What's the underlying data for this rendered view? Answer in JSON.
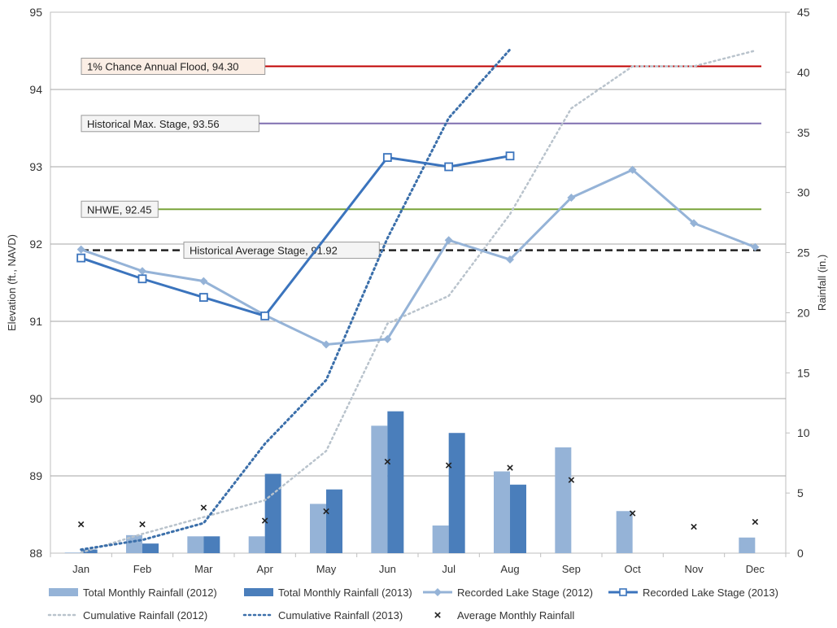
{
  "chart_data": {
    "type": "combo-bar-line",
    "categories": [
      "Jan",
      "Feb",
      "Mar",
      "Apr",
      "May",
      "Jun",
      "Jul",
      "Aug",
      "Sep",
      "Oct",
      "Nov",
      "Dec"
    ],
    "ylabel": "Elevation (ft., NAVD)",
    "y2label": "Rainfall (in.)",
    "ylim": [
      88,
      95
    ],
    "y2lim": [
      0,
      45
    ],
    "yticks": [
      88,
      89,
      90,
      91,
      92,
      93,
      94,
      95
    ],
    "y2ticks": [
      0,
      5,
      10,
      15,
      20,
      25,
      30,
      35,
      40,
      45
    ],
    "grid": "horizontal",
    "legend_position": "bottom",
    "colors": {
      "rain2012": "#95b3d7",
      "rain2013": "#4a7ebb",
      "stage2012": "#95b3d7",
      "stage2013": "#3b74bd",
      "cum2012": "#b9c3cc",
      "cum2013": "#3b6faa",
      "average": "#222222",
      "flood": "#c00000",
      "histmax": "#7f6fb0",
      "nhwe": "#7aa43a",
      "histavg": "#222222"
    },
    "series": [
      {
        "name": "Total Monthly Rainfall (2012)",
        "kind": "bar",
        "axis": "y2",
        "values": [
          0.05,
          1.5,
          1.4,
          1.4,
          4.1,
          10.6,
          2.3,
          6.8,
          8.8,
          3.5,
          0,
          1.3
        ]
      },
      {
        "name": "Total Monthly Rainfall (2013)",
        "kind": "bar",
        "axis": "y2",
        "values": [
          0.3,
          0.8,
          1.4,
          6.6,
          5.3,
          11.8,
          10.0,
          5.7,
          null,
          null,
          null,
          null
        ]
      },
      {
        "name": "Recorded Lake Stage (2012)",
        "kind": "line",
        "axis": "y",
        "values": [
          91.93,
          91.65,
          91.52,
          91.08,
          90.7,
          90.77,
          92.05,
          91.8,
          92.6,
          92.96,
          92.27,
          91.96
        ]
      },
      {
        "name": "Recorded Lake Stage (2013)",
        "kind": "line",
        "axis": "y",
        "values": [
          91.82,
          91.55,
          91.31,
          91.07,
          null,
          93.12,
          93.0,
          93.14,
          null,
          null,
          null,
          null
        ]
      },
      {
        "name": "Cumulative Rainfall (2012)",
        "kind": "dotted",
        "axis": "y2",
        "values": [
          0.05,
          1.6,
          3.0,
          4.4,
          8.5,
          19.1,
          21.4,
          28.2,
          37.0,
          40.5,
          40.5,
          41.8
        ]
      },
      {
        "name": "Cumulative Rainfall (2013)",
        "kind": "dotted",
        "axis": "y2",
        "values": [
          0.3,
          1.1,
          2.5,
          9.1,
          14.4,
          26.2,
          36.2,
          41.9,
          null,
          null,
          null,
          null
        ]
      },
      {
        "name": "Average Monthly Rainfall",
        "kind": "marker",
        "axis": "y2",
        "values": [
          2.4,
          2.4,
          3.8,
          2.7,
          3.5,
          7.6,
          7.3,
          7.1,
          6.1,
          3.3,
          2.2,
          2.6
        ]
      }
    ],
    "reference_lines": [
      {
        "label": "1% Chance Annual Flood, 94.30",
        "value": 94.3,
        "color": "#c00000",
        "style": "solid"
      },
      {
        "label": "Historical Max. Stage, 93.56",
        "value": 93.56,
        "color": "#7f6fb0",
        "style": "solid"
      },
      {
        "label": "NHWE, 92.45",
        "value": 92.45,
        "color": "#7aa43a",
        "style": "solid"
      },
      {
        "label": "Historical Average Stage, 91.92",
        "value": 91.92,
        "color": "#222222",
        "style": "dashed"
      }
    ]
  }
}
